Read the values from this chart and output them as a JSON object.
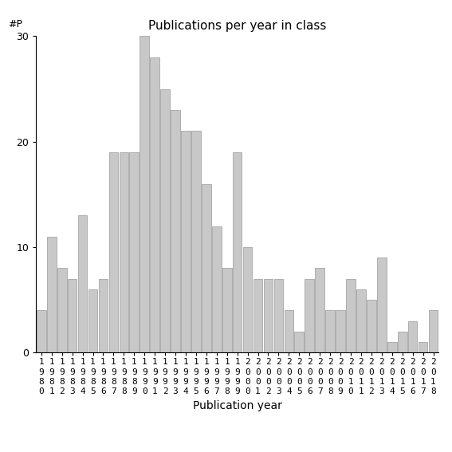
{
  "title": "Publications per year in class",
  "xlabel": "Publication year",
  "ylabel": "#P",
  "bar_color": "#c8c8c8",
  "bar_edgecolor": "#999999",
  "years": [
    1980,
    1981,
    1982,
    1983,
    1984,
    1985,
    1986,
    1987,
    1988,
    1989,
    1990,
    1991,
    1992,
    1993,
    1994,
    1995,
    1996,
    1997,
    1998,
    1999,
    2000,
    2001,
    2002,
    2003,
    2004,
    2005,
    2006,
    2007,
    2008,
    2009,
    2010,
    2011,
    2012,
    2013,
    2014,
    2015,
    2016,
    2017,
    2018
  ],
  "values": [
    4,
    11,
    8,
    7,
    13,
    6,
    7,
    19,
    19,
    19,
    30,
    28,
    25,
    23,
    21,
    21,
    16,
    12,
    8,
    19,
    10,
    7,
    7,
    7,
    4,
    2,
    7,
    8,
    4,
    4,
    7,
    6,
    5,
    9,
    1,
    2,
    3,
    1,
    4
  ],
  "ylim": [
    0,
    30
  ],
  "yticks": [
    0,
    10,
    20,
    30
  ],
  "figsize": [
    5.67,
    5.67
  ],
  "dpi": 100
}
